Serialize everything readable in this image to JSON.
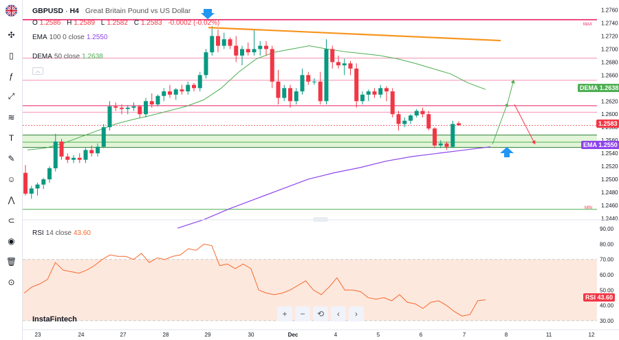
{
  "symbol": {
    "ticker": "GBPUSD",
    "timeframe": "H4",
    "name": "Great Britain Pound vs US Dollar",
    "sep": "·"
  },
  "ohlc": {
    "o_label": "O",
    "o": "1.2586",
    "h_label": "H",
    "h": "1.2589",
    "l_label": "L",
    "l": "1.2582",
    "c_label": "C",
    "c": "1.2583",
    "change": "-0.0002 (-0.02%)"
  },
  "indicators": {
    "ema": {
      "label": "EMA",
      "params": "100 0 close",
      "value": "1.2550",
      "color": "#8e44ec"
    },
    "dema": {
      "label": "DEMA",
      "params": "50 close",
      "value": "1.2638",
      "color": "#4caf50"
    },
    "rsi": {
      "label": "RSI",
      "params": "14 close",
      "value": "43.60",
      "color": "#f7682a"
    }
  },
  "tags": {
    "dema_tag": "DEMA",
    "dema_val": "1.2638",
    "price_val": "1.2583",
    "ema_tag": "EMA",
    "ema_val": "1.2550",
    "rsi_tag": "RSI",
    "rsi_val": "43.60",
    "max_label": "MAX",
    "min_label": "MIN"
  },
  "brand": "InstaFintech",
  "nav": {
    "zoom_in": "+",
    "zoom_out": "−",
    "reset": "⟲",
    "left": "‹",
    "right": "›"
  },
  "toolbar": [
    "crosshair-icon",
    "candles-icon",
    "formula-icon",
    "trendline-icon",
    "fib-icon",
    "text-icon",
    "brush-icon",
    "emoji-icon",
    "pattern-icon",
    "magnet-icon",
    "eye-icon",
    "trash-icon",
    "camera-icon"
  ],
  "colors": {
    "up": "#089981",
    "down": "#f23645",
    "fill_zone": "#e2f5d9",
    "rsi_band": "#fde8de"
  },
  "chart_data": {
    "type": "candlestick",
    "x_ticks": [
      "23",
      "24",
      "27",
      "28",
      "29",
      "30",
      "Dec",
      "4",
      "5",
      "6",
      "7",
      "8",
      "11",
      "12"
    ],
    "price_axis": [
      "1.2760",
      "1.2740",
      "1.2720",
      "1.2700",
      "1.2680",
      "1.2660",
      "1.2640",
      "1.2620",
      "1.2600",
      "1.2580",
      "1.2560",
      "1.2540",
      "1.2520",
      "1.2500",
      "1.2480",
      "1.2460",
      "1.2440"
    ],
    "rsi_axis": [
      "90.00",
      "80.00",
      "70.00",
      "60.00",
      "50.00",
      "40.00",
      "30.00"
    ],
    "ylim": [
      1.244,
      1.277
    ],
    "candles": [
      [
        1.251,
        1.2522,
        1.2475,
        1.2478
      ],
      [
        1.2478,
        1.249,
        1.247,
        1.2486
      ],
      [
        1.2486,
        1.2495,
        1.2475,
        1.2492
      ],
      [
        1.2492,
        1.2502,
        1.2485,
        1.25
      ],
      [
        1.25,
        1.252,
        1.2495,
        1.2517
      ],
      [
        1.2517,
        1.257,
        1.2512,
        1.2558
      ],
      [
        1.2558,
        1.2562,
        1.253,
        1.2535
      ],
      [
        1.2535,
        1.254,
        1.2525,
        1.253
      ],
      [
        1.253,
        1.2537,
        1.2525,
        1.2533
      ],
      [
        1.2533,
        1.254,
        1.2525,
        1.253
      ],
      [
        1.253,
        1.2548,
        1.2525,
        1.2545
      ],
      [
        1.2545,
        1.2552,
        1.2535,
        1.254
      ],
      [
        1.254,
        1.2555,
        1.2535,
        1.255
      ],
      [
        1.255,
        1.2585,
        1.2548,
        1.258
      ],
      [
        1.258,
        1.262,
        1.2575,
        1.2612
      ],
      [
        1.2612,
        1.2618,
        1.2605,
        1.261
      ],
      [
        1.261,
        1.2615,
        1.26,
        1.2608
      ],
      [
        1.2608,
        1.2614,
        1.26,
        1.261
      ],
      [
        1.261,
        1.2618,
        1.2605,
        1.2612
      ],
      [
        1.2612,
        1.2614,
        1.2595,
        1.26
      ],
      [
        1.26,
        1.2625,
        1.2595,
        1.262
      ],
      [
        1.262,
        1.2632,
        1.261,
        1.2615
      ],
      [
        1.2615,
        1.263,
        1.2612,
        1.2628
      ],
      [
        1.2628,
        1.264,
        1.262,
        1.2635
      ],
      [
        1.2635,
        1.2645,
        1.2625,
        1.263
      ],
      [
        1.263,
        1.264,
        1.2622,
        1.2638
      ],
      [
        1.2638,
        1.2645,
        1.263,
        1.2635
      ],
      [
        1.2635,
        1.265,
        1.263,
        1.2645
      ],
      [
        1.2645,
        1.2648,
        1.2635,
        1.264
      ],
      [
        1.264,
        1.2665,
        1.2635,
        1.266
      ],
      [
        1.266,
        1.27,
        1.2655,
        1.2695
      ],
      [
        1.2695,
        1.2735,
        1.269,
        1.272
      ],
      [
        1.272,
        1.273,
        1.2695,
        1.2705
      ],
      [
        1.2705,
        1.2725,
        1.27,
        1.2715
      ],
      [
        1.2715,
        1.2718,
        1.27,
        1.2705
      ],
      [
        1.2705,
        1.272,
        1.268,
        1.269
      ],
      [
        1.269,
        1.2705,
        1.2675,
        1.27
      ],
      [
        1.27,
        1.271,
        1.269,
        1.2695
      ],
      [
        1.2695,
        1.273,
        1.269,
        1.27
      ],
      [
        1.27,
        1.2712,
        1.269,
        1.2705
      ],
      [
        1.2705,
        1.2712,
        1.269,
        1.27
      ],
      [
        1.27,
        1.2705,
        1.264,
        1.265
      ],
      [
        1.265,
        1.2668,
        1.2615,
        1.2625
      ],
      [
        1.2625,
        1.2645,
        1.262,
        1.264
      ],
      [
        1.264,
        1.2645,
        1.261,
        1.262
      ],
      [
        1.262,
        1.264,
        1.2615,
        1.2635
      ],
      [
        1.2635,
        1.267,
        1.263,
        1.266
      ],
      [
        1.266,
        1.2665,
        1.2645,
        1.265
      ],
      [
        1.265,
        1.2655,
        1.2645,
        1.265
      ],
      [
        1.265,
        1.2665,
        1.2615,
        1.262
      ],
      [
        1.262,
        1.2715,
        1.2615,
        1.27
      ],
      [
        1.27,
        1.2705,
        1.267,
        1.268
      ],
      [
        1.268,
        1.269,
        1.267,
        1.2675
      ],
      [
        1.2675,
        1.2685,
        1.266,
        1.2678
      ],
      [
        1.2678,
        1.2682,
        1.266,
        1.267
      ],
      [
        1.267,
        1.2678,
        1.261,
        1.262
      ],
      [
        1.262,
        1.2635,
        1.2615,
        1.263
      ],
      [
        1.263,
        1.2638,
        1.262,
        1.2635
      ],
      [
        1.2635,
        1.264,
        1.2625,
        1.263
      ],
      [
        1.263,
        1.2645,
        1.2625,
        1.264
      ],
      [
        1.264,
        1.2643,
        1.262,
        1.2635
      ],
      [
        1.2635,
        1.264,
        1.2595,
        1.26
      ],
      [
        1.26,
        1.2605,
        1.2575,
        1.2585
      ],
      [
        1.2585,
        1.2595,
        1.258,
        1.259
      ],
      [
        1.259,
        1.26,
        1.2585,
        1.2598
      ],
      [
        1.2598,
        1.2608,
        1.2595,
        1.2605
      ],
      [
        1.2605,
        1.261,
        1.2595,
        1.26
      ],
      [
        1.26,
        1.2605,
        1.2575,
        1.2578
      ],
      [
        1.2578,
        1.258,
        1.2548,
        1.2552
      ],
      [
        1.2552,
        1.256,
        1.2548,
        1.2555
      ],
      [
        1.2555,
        1.2558,
        1.2545,
        1.255
      ],
      [
        1.255,
        1.259,
        1.2548,
        1.2585
      ],
      [
        1.2586,
        1.2589,
        1.2582,
        1.2583
      ]
    ],
    "dema": [
      1.2545,
      1.2548,
      1.2555,
      1.2565,
      1.2575,
      1.2585,
      1.2592,
      1.2598,
      1.2605,
      1.2612,
      1.2622,
      1.264,
      1.2665,
      1.2685,
      1.2695,
      1.27,
      1.2705,
      1.27,
      1.2696,
      1.2693,
      1.269,
      1.2685,
      1.2678,
      1.267,
      1.2662,
      1.2648,
      1.2638
    ],
    "ema": [
      1.2425,
      1.2438,
      1.2455,
      1.247,
      1.2485,
      1.25,
      1.251,
      1.2518,
      1.2528,
      1.2535,
      1.254,
      1.2545,
      1.255
    ],
    "rsi": [
      48,
      52,
      54,
      57,
      68,
      63,
      62,
      61,
      63,
      66,
      70,
      73,
      72,
      72,
      70,
      74,
      68,
      71,
      70,
      72,
      73,
      77,
      76,
      80,
      79,
      66,
      67,
      64,
      67,
      64,
      50,
      48,
      47,
      48,
      50,
      53,
      56,
      50,
      47,
      52,
      58,
      50,
      50,
      49,
      45,
      44,
      45,
      43,
      47,
      42,
      41,
      38,
      42,
      43,
      40,
      36,
      33,
      34,
      43,
      43.6
    ],
    "max_price": 1.2733,
    "min_price": 1.2454,
    "hlines": [
      {
        "price": 1.2745,
        "color": "#e91e63"
      },
      {
        "price": 1.2686,
        "color": "#f48fb1"
      },
      {
        "price": 1.2652,
        "color": "#f48fb1"
      },
      {
        "price": 1.2613,
        "color": "#e91e63"
      },
      {
        "price": 1.2603,
        "color": "#f48fb1"
      },
      {
        "price": 1.2568,
        "color": "#2e7d32"
      },
      {
        "price": 1.2557,
        "color": "#4caf50"
      },
      {
        "price": 1.2549,
        "color": "#2e7d32"
      },
      {
        "price": 1.2454,
        "color": "#4caf50"
      }
    ],
    "zone": [
      1.2549,
      1.2568
    ],
    "trend": [
      [
        1.2733,
        0
      ],
      [
        1.2713,
        1
      ]
    ]
  }
}
